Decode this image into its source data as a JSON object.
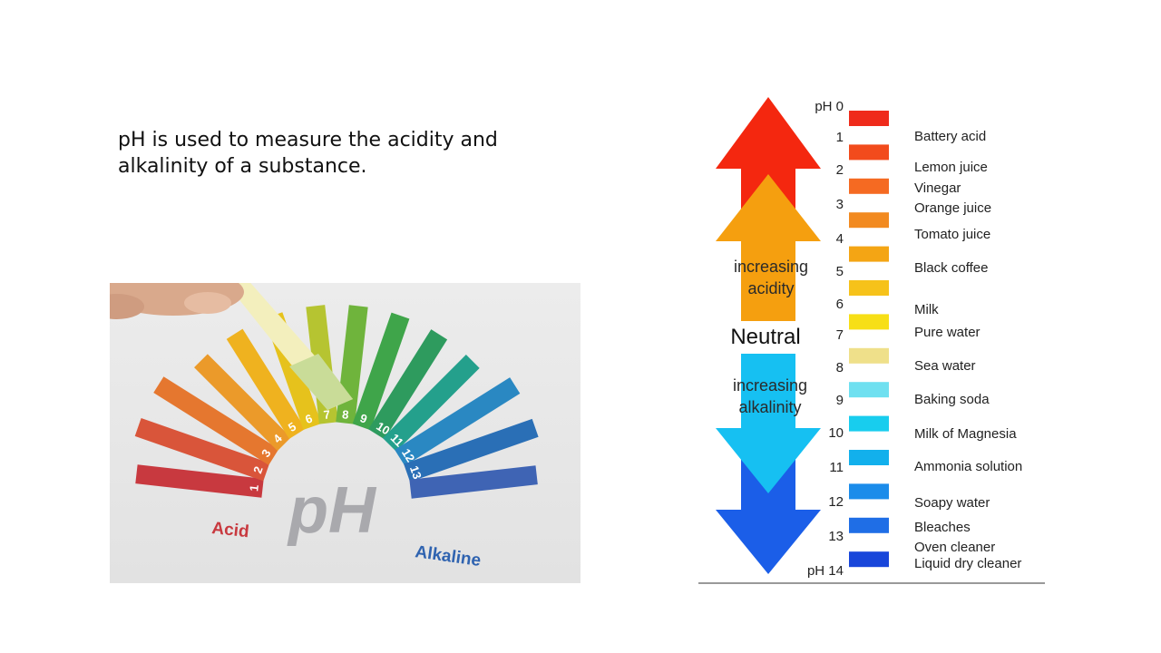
{
  "slide": {
    "body_text": "pH is used to measure the acidity and alkalinity of a substance."
  },
  "photo": {
    "center_label": "pH",
    "acid_label": "Acid",
    "alkaline_label": "Alkaline",
    "strip_numbers": [
      "1",
      "2",
      "3",
      "4",
      "5",
      "6",
      "7",
      "8",
      "9",
      "10",
      "11",
      "12",
      "13"
    ],
    "strip_colors": [
      "#c8393f",
      "#d9553a",
      "#e5772f",
      "#eb9a2a",
      "#efb21f",
      "#e6c21c",
      "#b6c431",
      "#6fb43c",
      "#3fa54a",
      "#2e9b5e",
      "#24a08c",
      "#2a88c2",
      "#2a6fb6",
      "#3f64b4"
    ],
    "acid_color": "#c8393f",
    "alkaline_color": "#2f63b0"
  },
  "ph_scale": {
    "levels": [
      {
        "label": "pH 0",
        "color": "#ef2b1b"
      },
      {
        "label": "1",
        "color": "#f24b1c"
      },
      {
        "label": "2",
        "color": "#f56a22"
      },
      {
        "label": "3",
        "color": "#f28a20"
      },
      {
        "label": "4",
        "color": "#f4a514"
      },
      {
        "label": "5",
        "color": "#f6c21a"
      },
      {
        "label": "6",
        "color": "#f7df16"
      },
      {
        "label": "7",
        "color": "#efe08a"
      },
      {
        "label": "8",
        "color": "#6fe0f0"
      },
      {
        "label": "9",
        "color": "#18cdee"
      },
      {
        "label": "10",
        "color": "#12b0ec"
      },
      {
        "label": "11",
        "color": "#1b8cea"
      },
      {
        "label": "12",
        "color": "#1f6ee6"
      },
      {
        "label": "13",
        "color": "#1846da"
      },
      {
        "label": "pH 14",
        "color": "#1523d2"
      }
    ],
    "substances": [
      "Battery acid",
      "Lemon juice",
      "Vinegar",
      "Orange juice",
      "Tomato juice",
      "Black coffee",
      "Milk",
      "Pure water",
      "Sea water",
      "Baking soda",
      "Milk of Magnesia",
      "Ammonia solution",
      "Soapy water",
      "Bleaches",
      "Oven cleaner",
      "Liquid dry cleaner"
    ],
    "acid_arrow_text_1": "increasing",
    "acid_arrow_text_2": "acidity",
    "neutral_text": "Neutral",
    "alkaline_arrow_text_1": "increasing",
    "alkaline_arrow_text_2": "alkalinity",
    "colors": {
      "red_arrow": "#f4270f",
      "orange_arrow": "#f59f0f",
      "cyan_arrow": "#16c0f2",
      "blue_arrow": "#1b5ee8"
    }
  }
}
